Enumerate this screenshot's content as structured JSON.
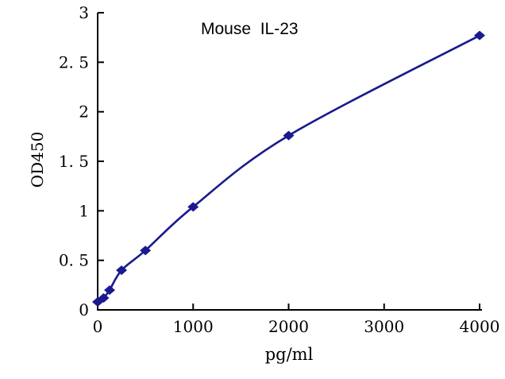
{
  "chart_data": {
    "type": "line",
    "title": "Mouse  IL-23",
    "xlabel": "pg/ml",
    "ylabel": "OD450",
    "x": [
      0,
      62.5,
      125,
      250,
      500,
      1000,
      2000,
      4000
    ],
    "values": [
      0.08,
      0.12,
      0.2,
      0.4,
      0.6,
      1.04,
      1.76,
      2.77
    ],
    "xlim": [
      0,
      4000
    ],
    "ylim": [
      0,
      3
    ],
    "x_ticks": [
      0,
      1000,
      2000,
      3000,
      4000
    ],
    "x_tick_labels": [
      "0",
      "1000",
      "2000",
      "3000",
      "4000"
    ],
    "y_ticks": [
      0,
      0.5,
      1,
      1.5,
      2,
      2.5,
      3
    ],
    "y_tick_labels": [
      "0",
      "0. 5",
      "1",
      "1. 5",
      "2",
      "2. 5",
      "3"
    ],
    "grid": false,
    "legend_position": "none",
    "marker": "diamond",
    "smooth": true,
    "colors": {
      "line": "#1a1a8e",
      "marker": "#1a1a8e",
      "axis": "#000000",
      "background": "#ffffff"
    }
  }
}
